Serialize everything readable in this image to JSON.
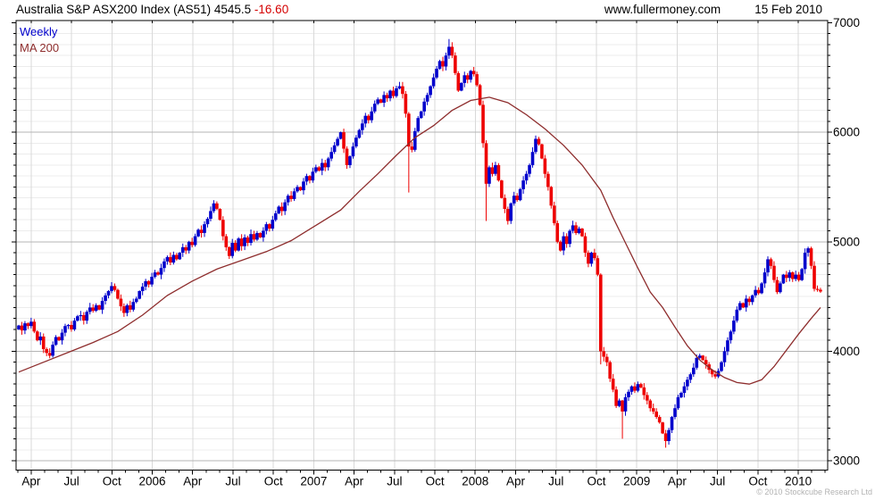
{
  "header": {
    "title": "Australia S&P ASX200 Index (AS51) 4545.5 ",
    "change": "-16.60",
    "website": "www.fullermoney.com",
    "date": "15 Feb 2010"
  },
  "legend": {
    "series1": "Weekly",
    "series2": "MA 200"
  },
  "footer": {
    "copyright": "© 2010 Stockcube Research Ltd"
  },
  "chart_data": {
    "type": "candlestick",
    "title": "Australia S&P ASX200 Index (AS51)",
    "frequency": "Weekly",
    "overlay": "MA 200",
    "last_price": 4545.5,
    "change": -16.6,
    "date": "15 Feb 2010",
    "x_axis": {
      "labels": [
        "Apr",
        "Jul",
        "Oct",
        "2006",
        "Apr",
        "Jul",
        "Oct",
        "2007",
        "Apr",
        "Jul",
        "Oct",
        "2008",
        "Apr",
        "Jul",
        "Oct",
        "2009",
        "Apr",
        "Jul",
        "Oct",
        "2010"
      ],
      "start": "Feb 2005",
      "end": "Feb 2010",
      "grid": true
    },
    "y_axis": {
      "tick_labels": [
        3000,
        4000,
        5000,
        6000,
        7000
      ],
      "range_top": 7020,
      "range_bottom": 2915,
      "minor_tick_step": 100,
      "major_tick_step": 1000,
      "grid_minor_step": 100,
      "grid_major_step": 1000
    },
    "first_open": 4200,
    "weekly_closes": [
      4235,
      4190,
      4255,
      4230,
      4270,
      4180,
      4100,
      4135,
      4020,
      3985,
      3960,
      4060,
      4130,
      4100,
      4170,
      4230,
      4240,
      4200,
      4280,
      4320,
      4330,
      4280,
      4360,
      4400,
      4370,
      4420,
      4380,
      4460,
      4510,
      4550,
      4595,
      4560,
      4480,
      4410,
      4350,
      4420,
      4380,
      4450,
      4480,
      4550,
      4590,
      4640,
      4610,
      4680,
      4720,
      4700,
      4760,
      4820,
      4860,
      4810,
      4880,
      4840,
      4900,
      4950,
      4920,
      5000,
      4970,
      5050,
      5110,
      5080,
      5160,
      5210,
      5280,
      5350,
      5300,
      5200,
      5050,
      4950,
      4870,
      4990,
      4920,
      5030,
      4960,
      5040,
      4990,
      5070,
      5020,
      5080,
      5040,
      5100,
      5160,
      5120,
      5200,
      5260,
      5320,
      5280,
      5360,
      5420,
      5390,
      5460,
      5500,
      5470,
      5550,
      5600,
      5560,
      5640,
      5680,
      5650,
      5720,
      5680,
      5760,
      5820,
      5880,
      5940,
      6000,
      5850,
      5700,
      5780,
      5870,
      5950,
      6020,
      6080,
      6150,
      6110,
      6190,
      6260,
      6300,
      6270,
      6340,
      6310,
      6380,
      6330,
      6400,
      6420,
      6350,
      6170,
      5870,
      5840,
      6010,
      6130,
      6190,
      6280,
      6340,
      6420,
      6500,
      6580,
      6650,
      6600,
      6700,
      6780,
      6700,
      6540,
      6380,
      6450,
      6520,
      6480,
      6560,
      6530,
      6430,
      6250,
      5900,
      5530,
      5680,
      5620,
      5700,
      5560,
      5400,
      5300,
      5190,
      5350,
      5420,
      5380,
      5480,
      5560,
      5620,
      5700,
      5820,
      5940,
      5890,
      5760,
      5620,
      5500,
      5330,
      5170,
      5000,
      4920,
      5050,
      4980,
      5100,
      5150,
      5080,
      5120,
      5050,
      4900,
      4800,
      4900,
      4850,
      4700,
      4000,
      3950,
      3900,
      3750,
      3650,
      3500,
      3550,
      3450,
      3580,
      3630,
      3680,
      3640,
      3700,
      3670,
      3600,
      3550,
      3480,
      3450,
      3400,
      3350,
      3250,
      3180,
      3280,
      3400,
      3480,
      3580,
      3620,
      3680,
      3740,
      3790,
      3850,
      3940,
      3960,
      3920,
      3880,
      3830,
      3790,
      3770,
      3820,
      3900,
      4000,
      4100,
      4180,
      4280,
      4380,
      4440,
      4400,
      4480,
      4450,
      4510,
      4560,
      4530,
      4620,
      4720,
      4840,
      4780,
      4650,
      4540,
      4620,
      4700,
      4670,
      4720,
      4660,
      4700,
      4650,
      4750,
      4900,
      4940,
      4780,
      4570,
      4562.1,
      4545.5
    ],
    "wick_overrides": {
      "123": [
        6460,
        null
      ],
      "126": [
        null,
        5450
      ],
      "139": [
        6851,
        null
      ],
      "151": [
        null,
        5190
      ],
      "188": [
        null,
        3880
      ],
      "195": [
        null,
        3201
      ],
      "209": [
        null,
        3120
      ],
      "255": [
        4955,
        null
      ]
    },
    "ma200_anchors": [
      [
        0,
        3810
      ],
      [
        8,
        3900
      ],
      [
        16,
        3990
      ],
      [
        24,
        4080
      ],
      [
        32,
        4180
      ],
      [
        40,
        4330
      ],
      [
        48,
        4510
      ],
      [
        56,
        4640
      ],
      [
        64,
        4750
      ],
      [
        72,
        4830
      ],
      [
        80,
        4910
      ],
      [
        88,
        5010
      ],
      [
        96,
        5150
      ],
      [
        104,
        5290
      ],
      [
        110,
        5460
      ],
      [
        116,
        5620
      ],
      [
        122,
        5790
      ],
      [
        128,
        5950
      ],
      [
        134,
        6060
      ],
      [
        140,
        6200
      ],
      [
        146,
        6290
      ],
      [
        152,
        6320
      ],
      [
        158,
        6270
      ],
      [
        164,
        6160
      ],
      [
        170,
        6030
      ],
      [
        176,
        5880
      ],
      [
        182,
        5700
      ],
      [
        188,
        5470
      ],
      [
        192,
        5220
      ],
      [
        196,
        4990
      ],
      [
        200,
        4760
      ],
      [
        204,
        4540
      ],
      [
        208,
        4400
      ],
      [
        212,
        4220
      ],
      [
        216,
        4050
      ],
      [
        220,
        3920
      ],
      [
        224,
        3830
      ],
      [
        228,
        3760
      ],
      [
        232,
        3715
      ],
      [
        236,
        3700
      ],
      [
        240,
        3740
      ],
      [
        244,
        3860
      ],
      [
        248,
        4010
      ],
      [
        252,
        4160
      ],
      [
        256,
        4300
      ],
      [
        259,
        4400
      ]
    ],
    "colors": {
      "up": "#0000cc",
      "down": "#ee0000",
      "ma": "#8e2d2d",
      "grid_minor": "#ececec",
      "grid_vertical": "#d9d9d9",
      "grid_major": "#b4b4b4",
      "frame": "#000000",
      "change_text": "#d40000"
    },
    "legend_position": "top-left",
    "grid": true
  }
}
